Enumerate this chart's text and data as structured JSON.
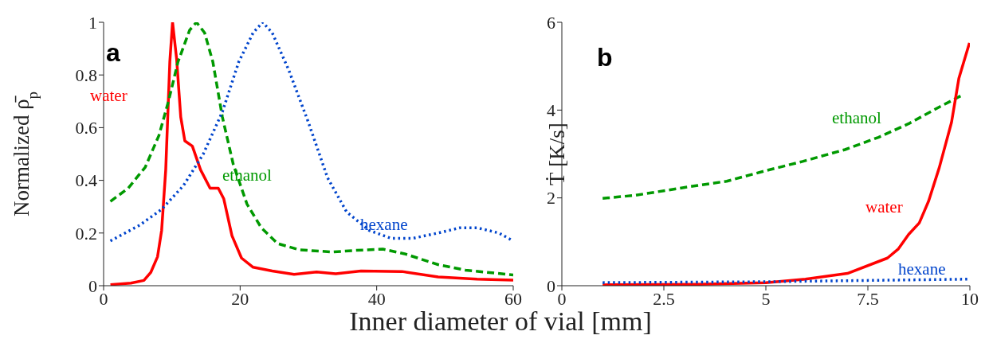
{
  "chart_data": [
    {
      "type": "line",
      "title": "a",
      "xlabel": "Inner diameter of vial [mm]",
      "ylabel": "Normalized ρ̄$_{p}$",
      "xlim": [
        0,
        60
      ],
      "ylim": [
        0,
        1
      ],
      "xticks": [
        0,
        20,
        40,
        60
      ],
      "yticks": [
        0,
        0.2,
        0.4,
        0.6,
        0.8,
        1
      ],
      "grid": false,
      "legend": false,
      "series": [
        {
          "name": "water",
          "color": "#ff0000",
          "line_style": "solid",
          "x": [
            1,
            4,
            5.9,
            6.9,
            7.9,
            8.5,
            9.1,
            9.7,
            10.1,
            10.7,
            11.3,
            11.9,
            13,
            14.2,
            15.6,
            16.8,
            17.6,
            18.8,
            20.2,
            21.9,
            24.7,
            27.9,
            31.2,
            34,
            37.7,
            43.7,
            49,
            54.7,
            60
          ],
          "values": [
            0.004,
            0.01,
            0.02,
            0.05,
            0.11,
            0.21,
            0.44,
            0.85,
            1.0,
            0.86,
            0.64,
            0.55,
            0.53,
            0.44,
            0.37,
            0.37,
            0.33,
            0.19,
            0.105,
            0.07,
            0.056,
            0.043,
            0.052,
            0.045,
            0.056,
            0.054,
            0.033,
            0.025,
            0.021
          ]
        },
        {
          "name": "ethanol",
          "color": "#009900",
          "line_style": "dashed",
          "x": [
            1,
            3.6,
            6.1,
            8.1,
            9.5,
            10.9,
            12.6,
            13.6,
            14.8,
            16,
            17.4,
            19,
            21,
            23.1,
            25.5,
            28.7,
            33.6,
            36.8,
            40.9,
            44.1,
            49,
            53,
            60
          ],
          "values": [
            0.32,
            0.37,
            0.45,
            0.57,
            0.7,
            0.85,
            0.97,
            1.0,
            0.96,
            0.85,
            0.64,
            0.46,
            0.31,
            0.22,
            0.16,
            0.136,
            0.128,
            0.134,
            0.139,
            0.121,
            0.08,
            0.059,
            0.041
          ]
        },
        {
          "name": "hexane",
          "color": "#0044cc",
          "line_style": "dotted",
          "x": [
            1,
            5.3,
            8.5,
            11.7,
            14.6,
            17.4,
            19.8,
            21.9,
            23.3,
            24.7,
            27.1,
            30,
            32.8,
            35.6,
            38.9,
            42.1,
            45.3,
            49,
            52.2,
            54.7,
            57.9,
            60
          ],
          "values": [
            0.17,
            0.23,
            0.29,
            0.38,
            0.5,
            0.66,
            0.85,
            0.96,
            1.0,
            0.96,
            0.82,
            0.62,
            0.41,
            0.28,
            0.21,
            0.18,
            0.18,
            0.2,
            0.22,
            0.22,
            0.2,
            0.17
          ]
        }
      ]
    },
    {
      "type": "line",
      "title": "b",
      "ylabel": "Ṫ [K/s]",
      "xlim": [
        0,
        10
      ],
      "ylim": [
        0,
        6
      ],
      "xticks": [
        0,
        2.5,
        5,
        7.5,
        10
      ],
      "yticks": [
        0,
        2,
        4,
        6
      ],
      "grid": false,
      "legend": false,
      "series": [
        {
          "name": "ethanol",
          "color": "#009900",
          "line_style": "dashed",
          "x": [
            1,
            1.81,
            2.55,
            3.3,
            4.04,
            5,
            5.9,
            6.94,
            7.76,
            8.5,
            9.25,
            9.81
          ],
          "values": [
            1.99,
            2.06,
            2.17,
            2.28,
            2.38,
            2.62,
            2.83,
            3.1,
            3.38,
            3.69,
            4.07,
            4.34
          ]
        },
        {
          "name": "water",
          "color": "#ff0000",
          "line_style": "solid",
          "x": [
            1,
            3.3,
            5,
            5.97,
            7,
            7.98,
            8.24,
            8.5,
            8.76,
            8.99,
            9.25,
            9.55,
            9.73,
            9.99
          ],
          "values": [
            0.02,
            0.03,
            0.07,
            0.15,
            0.28,
            0.63,
            0.83,
            1.17,
            1.43,
            1.93,
            2.69,
            3.72,
            4.72,
            5.53
          ]
        },
        {
          "name": "hexane",
          "color": "#0044cc",
          "line_style": "dotted",
          "x": [
            1,
            5,
            10
          ],
          "values": [
            0.07,
            0.09,
            0.15
          ]
        }
      ]
    }
  ]
}
